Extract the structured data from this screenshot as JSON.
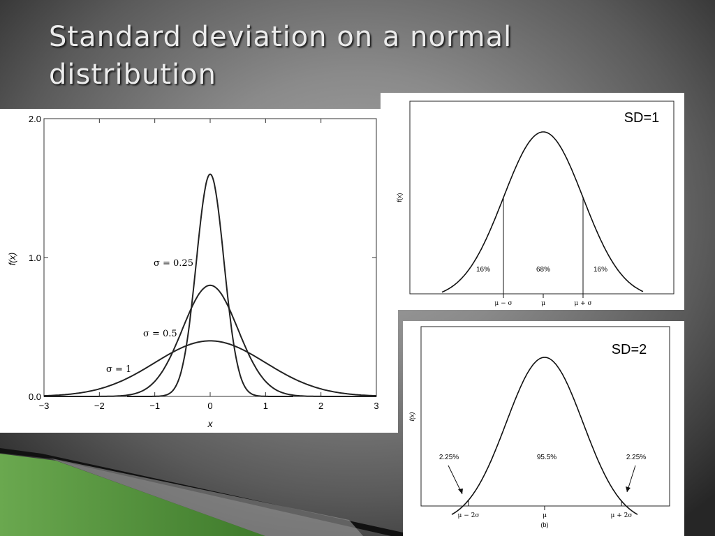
{
  "slide": {
    "title": "Standard deviation on a normal distribution"
  },
  "left_chart": {
    "ylabel": "f(x)",
    "xlabel": "x",
    "y_tick_labels": [
      "0.0",
      "1.0",
      "2.0"
    ],
    "x_tick_labels": [
      "−3",
      "−2",
      "−1",
      "0",
      "1",
      "2",
      "3"
    ],
    "curve_labels": [
      "σ = 0.25",
      "σ = 0.5",
      "σ = 1"
    ]
  },
  "top_right_chart": {
    "sd_label": "SD=1",
    "ylabel": "f(x)",
    "region_labels": [
      "16%",
      "68%",
      "16%"
    ],
    "x_tick_labels": [
      "μ − σ",
      "μ",
      "μ + σ"
    ]
  },
  "bottom_right_chart": {
    "sd_label": "SD=2",
    "ylabel": "f(x)",
    "region_labels": [
      "2.25%",
      "95.5%",
      "2.25%"
    ],
    "x_tick_labels": [
      "μ − 2σ",
      "μ",
      "μ + 2σ"
    ],
    "caption": "(b)"
  },
  "chart_data": [
    {
      "type": "line",
      "xlabel": "x",
      "ylabel": "f(x)",
      "xlim": [
        -3,
        3
      ],
      "ylim": [
        0,
        2
      ],
      "x_ticks": [
        -3,
        -2,
        -1,
        0,
        1,
        2,
        3
      ],
      "y_ticks": [
        0,
        1,
        2
      ],
      "series": [
        {
          "name": "σ = 0.25",
          "sigma": 0.25,
          "peak": 1.6
        },
        {
          "name": "σ = 0.5",
          "sigma": 0.5,
          "peak": 0.8
        },
        {
          "name": "σ = 1",
          "sigma": 1,
          "peak": 0.4
        }
      ]
    },
    {
      "type": "line",
      "xlabel": "",
      "ylabel": "f(x)",
      "x_ticks": [
        "μ − σ",
        "μ",
        "μ + σ"
      ],
      "regions": [
        {
          "label": "16%",
          "value": 16
        },
        {
          "label": "68%",
          "value": 68
        },
        {
          "label": "16%",
          "value": 16
        }
      ]
    },
    {
      "type": "line",
      "xlabel": "",
      "ylabel": "f(x)",
      "x_ticks": [
        "μ − 2σ",
        "μ",
        "μ + 2σ"
      ],
      "regions": [
        {
          "label": "2.25%",
          "value": 2.25
        },
        {
          "label": "95.5%",
          "value": 95.5
        },
        {
          "label": "2.25%",
          "value": 2.25
        }
      ]
    }
  ]
}
